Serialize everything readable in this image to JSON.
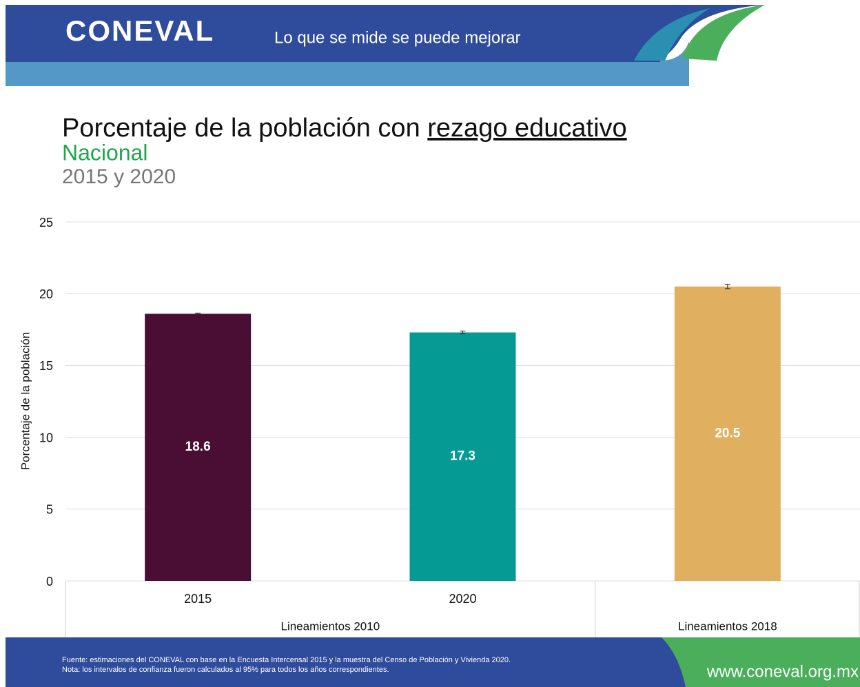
{
  "header": {
    "logo": "CONEVAL",
    "tagline": "Lo que se mide se puede mejorar"
  },
  "chart_data": {
    "type": "bar",
    "title": "Porcentaje de la población con",
    "title_emphasis": "rezago educativo",
    "subtitle": "Nacional",
    "subtitle2": "2015 y 2020",
    "y_label": "Porcentaje de la población",
    "categories": [
      "2015",
      "2020",
      null
    ],
    "values": [
      18.6,
      17.3,
      20.5
    ],
    "errors": [
      0.05,
      0.1,
      0.15
    ],
    "colors": [
      "#4a0e35",
      "#069a94",
      "#e0b060"
    ],
    "groups": [
      {
        "label": "Lineamientos 2010",
        "count": 2
      },
      {
        "label": "Lineamientos 2018",
        "count": 1
      }
    ],
    "ylim": [
      0,
      25
    ],
    "yticks": [
      0,
      5,
      10,
      15,
      20,
      25
    ],
    "grid": true
  },
  "footer": {
    "notes": [
      "Fuente: estimaciones del CONEVAL con base en la Encuesta Intercensal 2015 y la muestra del Censo de Población y Vivienda 2020.",
      "Nota: los intervalos de confianza fueron calculados al 95% para todos los años correspondientes."
    ],
    "url": "www.coneval.org.mx"
  }
}
